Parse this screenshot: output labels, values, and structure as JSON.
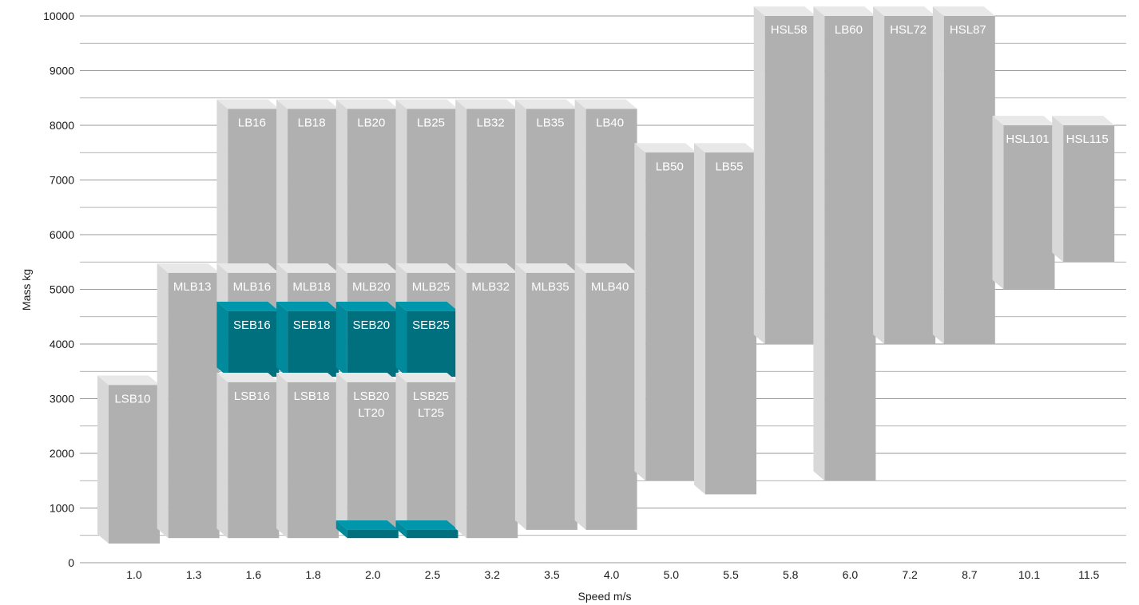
{
  "chart_data": {
    "type": "bar",
    "subtype": "floating-range-3d",
    "title": "",
    "xlabel": "Speed m/s",
    "ylabel": "Mass kg",
    "ylim": [
      0,
      10000
    ],
    "yticks": [
      0,
      1000,
      2000,
      3000,
      4000,
      5000,
      6000,
      7000,
      8000,
      9000,
      10000
    ],
    "grid": "horizontal",
    "legend": "none",
    "categories": [
      "1.0",
      "1.3",
      "1.6",
      "1.8",
      "2.0",
      "2.5",
      "3.2",
      "3.5",
      "4.0",
      "5.0",
      "5.5",
      "5.8",
      "6.0",
      "7.2",
      "8.7",
      "10.1",
      "11.5"
    ],
    "colors": {
      "gray_front": "#b0b0b0",
      "gray_top": "#e8e8e8",
      "gray_side": "#d8d8d8",
      "teal_front": "#00707f",
      "teal_top": "#0097ad",
      "teal_side": "#008a9c",
      "grid": "#9a9a9a"
    },
    "bars": [
      {
        "label": [
          "LSB10"
        ],
        "category": "1.0",
        "min": 350,
        "max": 3250,
        "color": "gray"
      },
      {
        "label": [
          "MLB13"
        ],
        "category": "1.3",
        "min": 450,
        "max": 5300,
        "color": "gray"
      },
      {
        "label": [
          "LB16"
        ],
        "category": "1.6",
        "min": 5300,
        "max": 8300,
        "color": "gray"
      },
      {
        "label": [
          "MLB16"
        ],
        "category": "1.6",
        "min": 4600,
        "max": 5300,
        "color": "gray"
      },
      {
        "label": [
          "SEB16"
        ],
        "category": "1.6",
        "min": 3400,
        "max": 4600,
        "color": "teal"
      },
      {
        "label": [
          "LSB16"
        ],
        "category": "1.6",
        "min": 450,
        "max": 3300,
        "color": "gray"
      },
      {
        "label": [
          "LB18"
        ],
        "category": "1.8",
        "min": 5300,
        "max": 8300,
        "color": "gray"
      },
      {
        "label": [
          "MLB18"
        ],
        "category": "1.8",
        "min": 4600,
        "max": 5300,
        "color": "gray"
      },
      {
        "label": [
          "SEB18"
        ],
        "category": "1.8",
        "min": 3400,
        "max": 4600,
        "color": "teal"
      },
      {
        "label": [
          "LSB18"
        ],
        "category": "1.8",
        "min": 450,
        "max": 3300,
        "color": "gray"
      },
      {
        "label": [
          "LB20"
        ],
        "category": "2.0",
        "min": 5300,
        "max": 8300,
        "color": "gray"
      },
      {
        "label": [
          "MLB20"
        ],
        "category": "2.0",
        "min": 4600,
        "max": 5300,
        "color": "gray"
      },
      {
        "label": [
          "SEB20"
        ],
        "category": "2.0",
        "min": 3400,
        "max": 4600,
        "color": "teal"
      },
      {
        "label": [
          "LSB20",
          "LT20"
        ],
        "category": "2.0",
        "min": 600,
        "max": 3300,
        "color": "gray"
      },
      {
        "label": [
          ""
        ],
        "category": "2.0",
        "min": 450,
        "max": 600,
        "color": "teal"
      },
      {
        "label": [
          "LB25"
        ],
        "category": "2.5",
        "min": 5300,
        "max": 8300,
        "color": "gray"
      },
      {
        "label": [
          "MLB25"
        ],
        "category": "2.5",
        "min": 4600,
        "max": 5300,
        "color": "gray"
      },
      {
        "label": [
          "SEB25"
        ],
        "category": "2.5",
        "min": 3400,
        "max": 4600,
        "color": "teal"
      },
      {
        "label": [
          "LSB25",
          "LT25"
        ],
        "category": "2.5",
        "min": 600,
        "max": 3300,
        "color": "gray"
      },
      {
        "label": [
          ""
        ],
        "category": "2.5",
        "min": 450,
        "max": 600,
        "color": "teal"
      },
      {
        "label": [
          "LB32"
        ],
        "category": "3.2",
        "min": 5300,
        "max": 8300,
        "color": "gray"
      },
      {
        "label": [
          "MLB32"
        ],
        "category": "3.2",
        "min": 450,
        "max": 5300,
        "color": "gray"
      },
      {
        "label": [
          "LB35"
        ],
        "category": "3.5",
        "min": 5300,
        "max": 8300,
        "color": "gray"
      },
      {
        "label": [
          "MLB35"
        ],
        "category": "3.5",
        "min": 600,
        "max": 5300,
        "color": "gray"
      },
      {
        "label": [
          "LB40"
        ],
        "category": "4.0",
        "min": 5300,
        "max": 8300,
        "color": "gray"
      },
      {
        "label": [
          "MLB40"
        ],
        "category": "4.0",
        "min": 600,
        "max": 5300,
        "color": "gray"
      },
      {
        "label": [
          "LB50"
        ],
        "category": "5.0",
        "min": 1500,
        "max": 7500,
        "color": "gray"
      },
      {
        "label": [
          "LB55"
        ],
        "category": "5.5",
        "min": 1250,
        "max": 7500,
        "color": "gray"
      },
      {
        "label": [
          "HSL58"
        ],
        "category": "5.8",
        "min": 4000,
        "max": 10000,
        "color": "gray"
      },
      {
        "label": [
          "LB60"
        ],
        "category": "6.0",
        "min": 1500,
        "max": 10000,
        "color": "gray"
      },
      {
        "label": [
          "HSL72"
        ],
        "category": "7.2",
        "min": 4000,
        "max": 10000,
        "color": "gray"
      },
      {
        "label": [
          "HSL87"
        ],
        "category": "8.7",
        "min": 4000,
        "max": 10000,
        "color": "gray"
      },
      {
        "label": [
          "HSL101"
        ],
        "category": "10.1",
        "min": 5000,
        "max": 8000,
        "color": "gray"
      },
      {
        "label": [
          "HSL115"
        ],
        "category": "11.5",
        "min": 5500,
        "max": 8000,
        "color": "gray"
      }
    ]
  }
}
